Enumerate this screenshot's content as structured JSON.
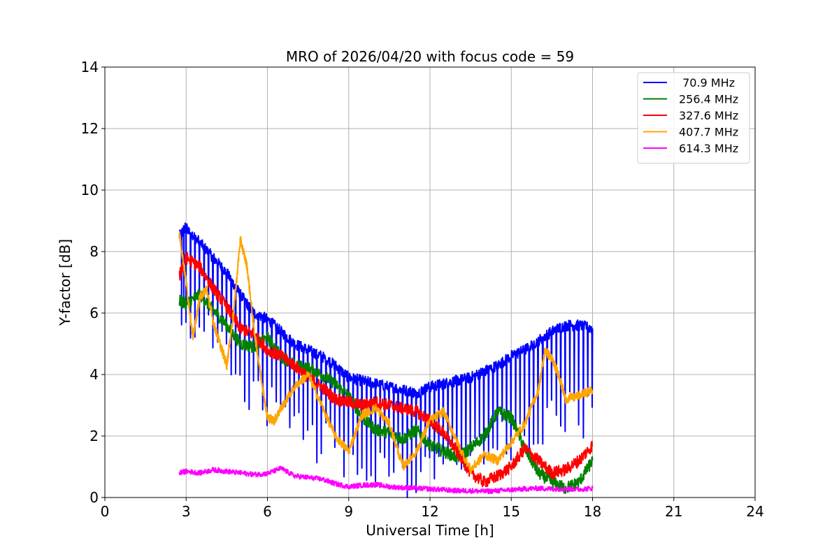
{
  "chart_data": {
    "type": "line",
    "title": "MRO of 2026/04/20 with focus code = 59",
    "xlabel": "Universal Time [h]",
    "ylabel": "Y-factor [dB]",
    "xlim": [
      0,
      24
    ],
    "ylim": [
      0,
      14
    ],
    "xticks": [
      0,
      3,
      6,
      9,
      12,
      15,
      18,
      21,
      24
    ],
    "yticks": [
      0,
      2,
      4,
      6,
      8,
      10,
      12,
      14
    ],
    "grid": true,
    "legend_position": "top-right",
    "series": [
      {
        "name": " 70.9 MHz",
        "color": "#0000ff",
        "x": [
          2.75,
          3.0,
          3.5,
          4.0,
          4.5,
          5.0,
          5.5,
          6.0,
          6.5,
          7.0,
          7.5,
          8.0,
          8.5,
          9.0,
          9.5,
          10.0,
          10.5,
          11.0,
          11.5,
          12.0,
          12.5,
          13.0,
          13.5,
          14.0,
          14.5,
          15.0,
          15.5,
          16.0,
          16.5,
          17.0,
          17.5,
          18.0
        ],
        "y": [
          8.5,
          8.8,
          8.3,
          7.8,
          7.3,
          6.6,
          6.0,
          5.8,
          5.4,
          5.0,
          4.8,
          4.6,
          4.3,
          3.9,
          3.8,
          3.7,
          3.6,
          3.5,
          3.4,
          3.6,
          3.7,
          3.8,
          3.9,
          4.1,
          4.3,
          4.6,
          4.8,
          5.1,
          5.4,
          5.6,
          5.6,
          5.5
        ]
      },
      {
        "name": "256.4 MHz",
        "color": "#008000",
        "x": [
          2.75,
          3.0,
          3.5,
          4.0,
          4.5,
          5.0,
          5.5,
          6.0,
          6.5,
          7.0,
          7.5,
          8.0,
          8.5,
          9.0,
          9.5,
          10.0,
          10.5,
          11.0,
          11.5,
          12.0,
          12.5,
          13.0,
          13.5,
          14.0,
          14.5,
          15.0,
          15.5,
          16.0,
          16.5,
          17.0,
          17.5,
          18.0
        ],
        "y": [
          6.4,
          6.3,
          6.6,
          6.1,
          5.6,
          5.0,
          4.9,
          5.2,
          4.6,
          4.3,
          4.2,
          4.0,
          3.7,
          3.3,
          2.6,
          2.2,
          2.1,
          1.9,
          2.2,
          1.7,
          1.5,
          1.3,
          1.6,
          2.0,
          2.8,
          2.6,
          1.6,
          0.8,
          0.5,
          0.3,
          0.5,
          1.2
        ]
      },
      {
        "name": "327.6 MHz",
        "color": "#ff0000",
        "x": [
          2.75,
          3.0,
          3.5,
          4.0,
          4.5,
          5.0,
          5.5,
          6.0,
          6.5,
          7.0,
          7.5,
          8.0,
          8.5,
          9.0,
          9.5,
          10.0,
          10.5,
          11.0,
          11.5,
          12.0,
          12.5,
          13.0,
          13.5,
          14.0,
          14.5,
          15.0,
          15.5,
          16.0,
          16.5,
          17.0,
          17.5,
          18.0
        ],
        "y": [
          7.2,
          7.8,
          7.5,
          6.8,
          6.2,
          5.5,
          5.3,
          4.8,
          4.6,
          4.3,
          3.9,
          3.6,
          3.2,
          3.1,
          3.0,
          3.1,
          3.0,
          2.9,
          2.8,
          2.5,
          2.1,
          1.5,
          0.8,
          0.5,
          0.7,
          1.0,
          1.6,
          1.2,
          0.8,
          0.9,
          1.2,
          1.7
        ]
      },
      {
        "name": "407.7 MHz",
        "color": "#ffa500",
        "x": [
          2.75,
          3.0,
          3.25,
          3.5,
          3.75,
          4.0,
          4.25,
          4.5,
          4.75,
          5.0,
          5.25,
          5.5,
          5.75,
          6.0,
          6.25,
          6.5,
          7.0,
          7.5,
          8.0,
          8.5,
          9.0,
          9.5,
          10.0,
          10.5,
          11.0,
          11.5,
          12.0,
          12.5,
          13.0,
          13.5,
          14.0,
          14.5,
          15.0,
          15.5,
          16.0,
          16.25,
          16.5,
          16.75,
          17.0,
          17.5,
          18.0
        ],
        "y": [
          8.6,
          7.0,
          5.2,
          6.5,
          6.8,
          5.7,
          5.0,
          4.3,
          6.0,
          8.4,
          7.5,
          5.5,
          4.0,
          2.6,
          2.5,
          2.9,
          3.6,
          4.0,
          3.0,
          2.0,
          1.5,
          2.7,
          2.9,
          2.4,
          1.0,
          1.5,
          2.5,
          2.8,
          1.8,
          0.9,
          1.4,
          1.2,
          1.8,
          2.4,
          3.5,
          4.8,
          4.5,
          4.0,
          3.2,
          3.3,
          3.5
        ]
      },
      {
        "name": "614.3 MHz",
        "color": "#ff00ff",
        "x": [
          2.75,
          3.0,
          3.5,
          4.0,
          4.5,
          5.0,
          5.5,
          6.0,
          6.5,
          7.0,
          7.5,
          8.0,
          8.5,
          9.0,
          9.5,
          10.0,
          10.5,
          11.0,
          11.5,
          12.0,
          12.5,
          13.0,
          13.5,
          14.0,
          14.5,
          15.0,
          15.5,
          16.0,
          16.5,
          17.0,
          17.5,
          18.0
        ],
        "y": [
          0.8,
          0.85,
          0.8,
          0.9,
          0.85,
          0.8,
          0.75,
          0.78,
          0.95,
          0.7,
          0.65,
          0.6,
          0.45,
          0.35,
          0.4,
          0.42,
          0.35,
          0.32,
          0.3,
          0.28,
          0.25,
          0.22,
          0.22,
          0.2,
          0.22,
          0.25,
          0.28,
          0.3,
          0.28,
          0.28,
          0.27,
          0.3
        ]
      }
    ]
  }
}
